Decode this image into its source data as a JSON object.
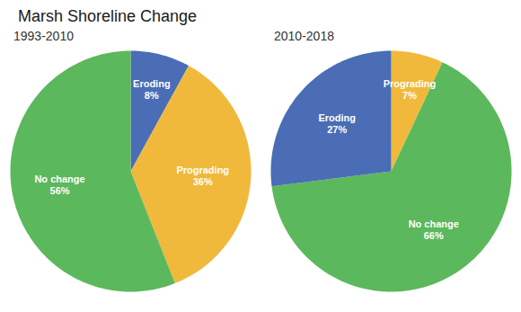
{
  "title": "Marsh Shoreline Change",
  "chart_data": [
    {
      "type": "pie",
      "title": "1993-2010",
      "categories": [
        "Eroding",
        "Prograding",
        "No change"
      ],
      "values": [
        8,
        36,
        56
      ],
      "value_labels": [
        "8%",
        "36%",
        "56%"
      ],
      "colors": [
        "#4A6DB5",
        "#F0B93B",
        "#5CB85C"
      ],
      "data_labels": true
    },
    {
      "type": "pie",
      "title": "2010-2018",
      "categories": [
        "Prograding",
        "No change",
        "Eroding"
      ],
      "values": [
        7,
        66,
        27
      ],
      "value_labels": [
        "7%",
        "66%",
        "27%"
      ],
      "colors": [
        "#F0B93B",
        "#5CB85C",
        "#4A6DB5"
      ],
      "data_labels": true
    }
  ]
}
